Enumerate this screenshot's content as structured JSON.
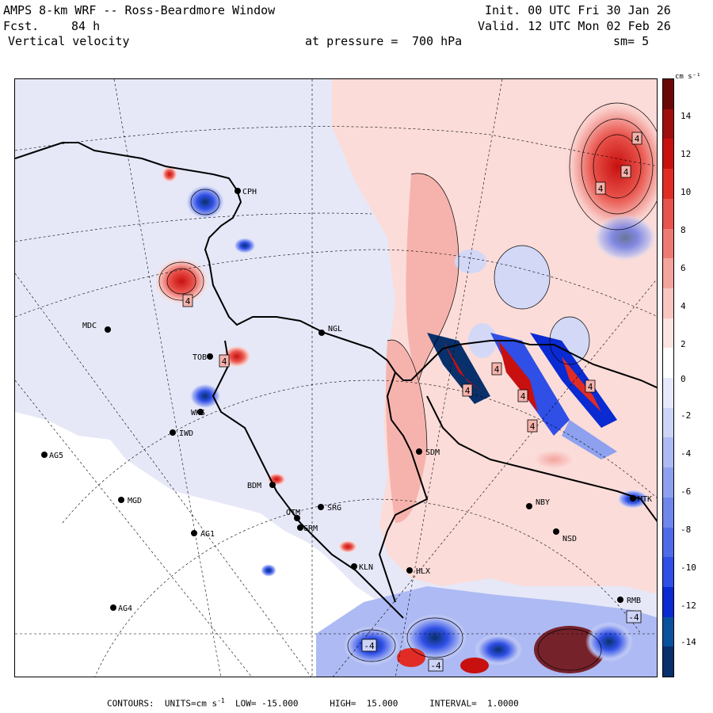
{
  "header": {
    "title": "AMPS 8-km WRF -- Ross-Beardmore Window",
    "forecast_label": "Fcst.",
    "forecast_hours": "84 h",
    "field": "Vertical velocity",
    "pressure_label": "at pressure =",
    "pressure_value": "700 hPa",
    "init": "Init. 00 UTC Fri 30 Jan 26",
    "valid": "Valid. 12 UTC Mon 02 Feb 26",
    "smoothing": "sm= 5"
  },
  "colorbar": {
    "units": "cm s⁻¹",
    "ticks": [
      "14",
      "12",
      "10",
      "8",
      "6",
      "4",
      "2",
      "0",
      "-2",
      "-4",
      "-6",
      "-8",
      "-10",
      "-12",
      "-14"
    ],
    "colors": [
      "#08306b",
      "#08519c",
      "#0a2ad2",
      "#2f4fe6",
      "#4f6ce8",
      "#6f86ec",
      "#8ea1ef",
      "#aebaf3",
      "#cdd4f7",
      "#e6e9fb",
      "#ffffff",
      "#fce4e2",
      "#f9c6c2",
      "#f4a39d",
      "#ee7b73",
      "#e8534b",
      "#e02c25",
      "#c8100f",
      "#a00d0d",
      "#6b0707"
    ]
  },
  "stations": [
    {
      "id": "CPH",
      "label": "CPH"
    },
    {
      "id": "MDC",
      "label": "MDC"
    },
    {
      "id": "NGL",
      "label": "NGL"
    },
    {
      "id": "TOB",
      "label": "TOB"
    },
    {
      "id": "WHS",
      "label": "WHS"
    },
    {
      "id": "IWD",
      "label": "IWD"
    },
    {
      "id": "AG5",
      "label": "AG5"
    },
    {
      "id": "SDM",
      "label": "SDM"
    },
    {
      "id": "BDM",
      "label": "BDM"
    },
    {
      "id": "MGD",
      "label": "MGD"
    },
    {
      "id": "OTM",
      "label": "OTM"
    },
    {
      "id": "SRG",
      "label": "SRG"
    },
    {
      "id": "GRM",
      "label": "GRM"
    },
    {
      "id": "AG1",
      "label": "AG1"
    },
    {
      "id": "NBY",
      "label": "NBY"
    },
    {
      "id": "MTK",
      "label": "MTK"
    },
    {
      "id": "NSD",
      "label": "NSD"
    },
    {
      "id": "KLN",
      "label": "KLN"
    },
    {
      "id": "HLX",
      "label": "HLX"
    },
    {
      "id": "AG4",
      "label": "AG4"
    },
    {
      "id": "RMB",
      "label": "RMB"
    }
  ],
  "contour_labels": [
    {
      "id": "c1",
      "text": "4"
    },
    {
      "id": "c2",
      "text": "4"
    },
    {
      "id": "c3",
      "text": "4"
    },
    {
      "id": "c4",
      "text": "4"
    },
    {
      "id": "c5",
      "text": "4"
    },
    {
      "id": "c6",
      "text": "4"
    },
    {
      "id": "c7",
      "text": "4"
    },
    {
      "id": "c8",
      "text": "4"
    },
    {
      "id": "c9",
      "text": "4"
    },
    {
      "id": "c10",
      "text": "-4"
    },
    {
      "id": "c11",
      "text": "-4"
    },
    {
      "id": "c12",
      "text": "-4"
    },
    {
      "id": "c13",
      "text": "4"
    }
  ],
  "footer": {
    "contours_label": "CONTOURS:",
    "units_label": "UNITS=cm s",
    "units_exp": "-1",
    "low_label": "LOW=",
    "low_value": "-15.000",
    "high_label": "HIGH=",
    "high_value": "15.000",
    "interval_label": "INTERVAL=",
    "interval_value": "1.0000"
  }
}
